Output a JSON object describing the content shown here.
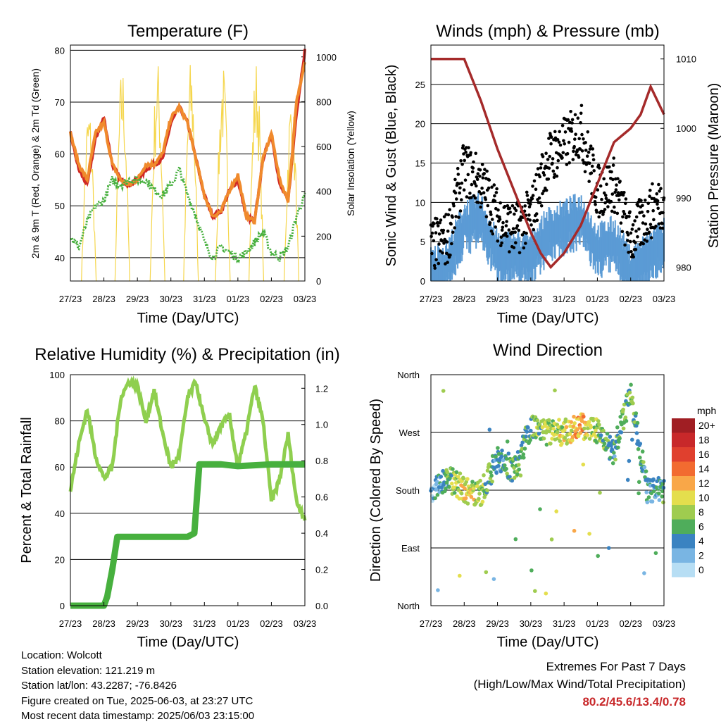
{
  "panels": {
    "temperature": {
      "title": "Temperature (F)",
      "xlabel": "Time (Day/UTC)",
      "ylabel_left": "2m & 9m T (Red, Orange) & 2m Td (Green)",
      "ylabel_right": "Solar Insolation (Yellow)"
    },
    "winds": {
      "title": "Winds (mph) & Pressure (mb)",
      "xlabel": "Time (Day/UTC)",
      "ylabel_left": "Sonic Wind & Gust (Blue, Black)",
      "ylabel_right": "Station Pressure (Maroon)"
    },
    "humidity": {
      "title": "Relative Humidity (%) & Precipitation (in)",
      "xlabel": "Time (Day/UTC)",
      "ylabel_left": "Percent & Total Rainfall"
    },
    "direction": {
      "title": "Wind Direction",
      "xlabel": "Time (Day/UTC)",
      "ylabel_left": "Direction (Colored By Speed)",
      "legend_title": "mph",
      "legend_labels": [
        "20+",
        "18",
        "16",
        "14",
        "12",
        "10",
        "8",
        "6",
        "4",
        "2",
        "0"
      ],
      "legend_colors": [
        "#a01e23",
        "#c8282a",
        "#e0402e",
        "#f26b30",
        "#f9a748",
        "#e4de4d",
        "#9fcc4f",
        "#4fad5b",
        "#3a83c1",
        "#79b5e3",
        "#b7def4"
      ]
    }
  },
  "info": {
    "location": "Location: Wolcott",
    "elevation": "Station elevation: 121.219 m",
    "latlon": "Station lat/lon: 43.2287; -76.8426",
    "created": "Figure created on Tue, 2025-06-03, at 23:27 UTC",
    "recent": "Most recent data timestamp: 2025/06/03 23:15:00"
  },
  "extremes": {
    "title": "Extremes For Past 7 Days",
    "subtitle": "(High/Low/Max Wind/Total Precipitation)",
    "values": "80.2/45.6/13.4/0.78"
  },
  "chart_data": [
    {
      "type": "line",
      "x_ticks": [
        "27/23",
        "28/23",
        "29/23",
        "30/23",
        "31/23",
        "01/23",
        "02/23",
        "03/23"
      ],
      "x": [
        0,
        0.25,
        0.5,
        0.75,
        1,
        1.25,
        1.5,
        1.75,
        2,
        2.25,
        2.5,
        2.75,
        3,
        3.25,
        3.5,
        3.75,
        4,
        4.25,
        4.5,
        4.75,
        5,
        5.25,
        5.5,
        5.75,
        6,
        6.25,
        6.5,
        6.75,
        7
      ],
      "ylim": [
        35.5,
        81
      ],
      "yticks_left": [
        40,
        50,
        60,
        70,
        80
      ],
      "y2lim": [
        0,
        1000
      ],
      "yticks_right": [
        0,
        200,
        400,
        600,
        800,
        1000
      ],
      "series": [
        {
          "color": "#d02a25",
          "values": [
            64,
            57,
            54,
            63,
            67,
            58,
            55,
            54,
            55,
            57,
            58,
            59,
            66,
            69,
            66,
            59,
            52,
            48,
            49,
            53,
            55,
            48,
            47,
            59,
            64,
            54,
            51,
            68,
            80
          ]
        },
        {
          "color": "#f08a2c",
          "values": [
            64,
            58,
            55,
            64,
            66,
            58,
            55,
            54,
            55,
            58,
            58,
            60,
            67,
            69,
            66,
            59,
            52,
            48,
            49,
            53,
            56,
            48,
            47,
            59,
            64,
            55,
            51,
            70,
            78
          ]
        },
        {
          "color": "#47b03e",
          "values": [
            44,
            42,
            47,
            50,
            51,
            55,
            54,
            55,
            55,
            55,
            53,
            52,
            54,
            57,
            52,
            48,
            43,
            40,
            42,
            41,
            40,
            41,
            43,
            45,
            41,
            40,
            42,
            48,
            52
          ]
        }
      ],
      "solar_color": "#f5d64c",
      "solar_peaks": [
        {
          "x": 0.55,
          "value": 800
        },
        {
          "x": 1.55,
          "value": 980
        },
        {
          "x": 2.6,
          "value": 1000
        },
        {
          "x": 3.6,
          "value": 1000
        },
        {
          "x": 4.55,
          "value": 980
        },
        {
          "x": 5.55,
          "value": 1000
        },
        {
          "x": 6.6,
          "value": 850
        }
      ]
    },
    {
      "type": "scatter",
      "x_ticks": [
        "27/23",
        "28/23",
        "29/23",
        "30/23",
        "31/23",
        "01/23",
        "02/23",
        "03/23"
      ],
      "ylim": [
        0,
        30
      ],
      "yticks_left": [
        0,
        5,
        10,
        15,
        20,
        25
      ],
      "y2lim": [
        978,
        1012
      ],
      "yticks_right": [
        980,
        990,
        1000,
        1010
      ],
      "wind_color": "#5b9bd5",
      "gust_color": "#000000",
      "pressure_color": "#a52a2a",
      "x": [
        0,
        0.5,
        1,
        1.5,
        2,
        2.5,
        3,
        3.5,
        4,
        4.5,
        5,
        5.5,
        6,
        6.5,
        7
      ],
      "wind": [
        2,
        3,
        8,
        9,
        4,
        4,
        4,
        7,
        8,
        9,
        5,
        6,
        2,
        4,
        6
      ],
      "gust": [
        4,
        5,
        14,
        12,
        8,
        6,
        8,
        15,
        17,
        19,
        11,
        12,
        5,
        8,
        10
      ],
      "pressure_x": [
        0,
        0.8,
        1.0,
        1.5,
        2.0,
        2.5,
        3.0,
        3.3,
        3.6,
        4.0,
        4.5,
        5.0,
        5.5,
        6.0,
        6.3,
        6.6,
        7.0
      ],
      "pressure": [
        1010,
        1010,
        1010,
        1004,
        997,
        991,
        985,
        982,
        980,
        982,
        986,
        992,
        998,
        1000,
        1002,
        1006,
        1002
      ]
    },
    {
      "type": "line",
      "x_ticks": [
        "27/23",
        "28/23",
        "29/23",
        "30/23",
        "31/23",
        "01/23",
        "02/23",
        "03/23"
      ],
      "ylim": [
        0,
        100
      ],
      "yticks_left": [
        0,
        20,
        40,
        60,
        80,
        100
      ],
      "y2lim": [
        0,
        1.275
      ],
      "yticks_right": [
        0.0,
        0.2,
        0.4,
        0.6,
        0.8,
        1.0,
        1.2
      ],
      "rh_color": "#8fcf4f",
      "precip_color": "#47b03e",
      "x": [
        0,
        0.25,
        0.5,
        0.75,
        1,
        1.25,
        1.5,
        1.75,
        2,
        2.25,
        2.5,
        2.75,
        3,
        3.25,
        3.5,
        3.75,
        4,
        4.25,
        4.5,
        4.75,
        5,
        5.25,
        5.5,
        5.75,
        6,
        6.25,
        6.5,
        6.75,
        7
      ],
      "rh": [
        50,
        70,
        85,
        65,
        55,
        60,
        90,
        97,
        95,
        80,
        93,
        75,
        60,
        65,
        90,
        97,
        80,
        70,
        78,
        82,
        60,
        75,
        95,
        80,
        45,
        55,
        74,
        45,
        38
      ],
      "precip_x": [
        0,
        1.0,
        1.1,
        1.25,
        1.4,
        2.0,
        2.5,
        3.0,
        3.5,
        3.7,
        3.85,
        4.0,
        4.5,
        5.0,
        6.0,
        7.0
      ],
      "precip": [
        0.0,
        0.0,
        0.05,
        0.2,
        0.38,
        0.38,
        0.38,
        0.38,
        0.38,
        0.4,
        0.78,
        0.78,
        0.78,
        0.77,
        0.78,
        0.78
      ]
    },
    {
      "type": "scatter",
      "x_ticks": [
        "27/23",
        "28/23",
        "29/23",
        "30/23",
        "31/23",
        "01/23",
        "02/23",
        "03/23"
      ],
      "y_ticks": [
        "North",
        "East",
        "South",
        "West",
        "North"
      ],
      "ylim": [
        0,
        360
      ],
      "x": [
        0,
        0.5,
        1,
        1.5,
        2,
        2.5,
        3,
        3.5,
        4,
        4.5,
        5,
        5.5,
        6,
        6.5,
        7
      ],
      "direction": [
        180,
        200,
        180,
        175,
        230,
        210,
        280,
        270,
        270,
        280,
        270,
        240,
        330,
        180,
        180
      ],
      "speed": [
        2,
        6,
        10,
        8,
        4,
        6,
        6,
        8,
        9,
        12,
        8,
        5,
        7,
        4,
        5
      ]
    }
  ]
}
